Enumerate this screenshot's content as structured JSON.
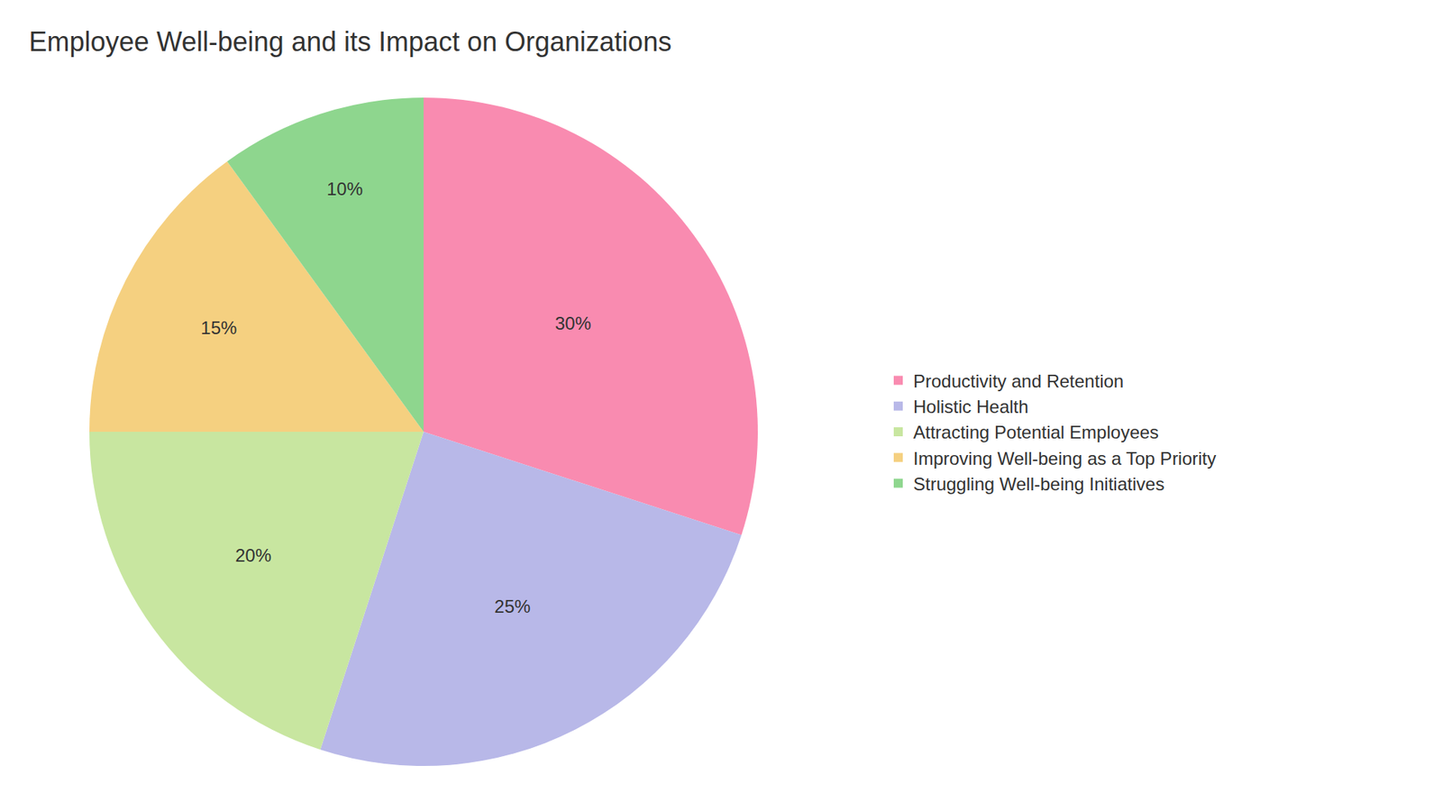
{
  "chart_data": {
    "type": "pie",
    "title": "Employee Well-being and its Impact on Organizations",
    "categories": [
      "Productivity and Retention",
      "Holistic Health",
      "Attracting Potential Employees",
      "Improving Well-being as a Top Priority",
      "Struggling Well-being Initiatives"
    ],
    "values": [
      30,
      25,
      20,
      15,
      10
    ],
    "value_labels": [
      "30%",
      "25%",
      "20%",
      "15%",
      "10%"
    ],
    "colors": [
      "#F98BB0",
      "#B8B8E8",
      "#C8E6A0",
      "#F5D080",
      "#8ED68E"
    ],
    "data_labels": true,
    "legend": "right"
  }
}
